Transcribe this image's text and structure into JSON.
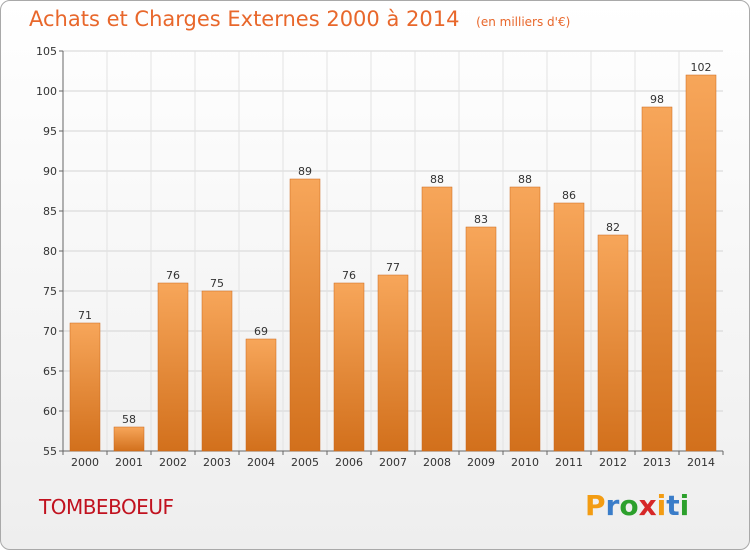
{
  "header": {
    "title": "Achats et Charges Externes 2000 à 2014",
    "unit": "(en milliers d'€)"
  },
  "footer": {
    "commune": "TOMBEBOEUF",
    "logo_letters": [
      "P",
      "r",
      "o",
      "x",
      "i",
      "t",
      "i"
    ],
    "logo_colors": [
      "#f39c12",
      "#3a7dc9",
      "#2ca02c",
      "#d62728",
      "#f39c12",
      "#3a7dc9",
      "#2ca02c"
    ]
  },
  "chart_data": {
    "type": "bar",
    "title": "Achats et Charges Externes 2000 à 2014",
    "subtitle": "(en milliers d'€)",
    "categories": [
      "2000",
      "2001",
      "2002",
      "2003",
      "2004",
      "2005",
      "2006",
      "2007",
      "2008",
      "2009",
      "2010",
      "2011",
      "2012",
      "2013",
      "2014"
    ],
    "values": [
      71,
      58,
      76,
      75,
      69,
      89,
      76,
      77,
      88,
      83,
      88,
      86,
      82,
      98,
      102
    ],
    "ylim": [
      55,
      105
    ],
    "yticks": [
      55,
      60,
      65,
      70,
      75,
      80,
      85,
      90,
      95,
      100,
      105
    ],
    "grid": true,
    "bar_color_top": "#f7a65a",
    "bar_color_bottom": "#d2701c",
    "xlabel": "",
    "ylabel": ""
  }
}
